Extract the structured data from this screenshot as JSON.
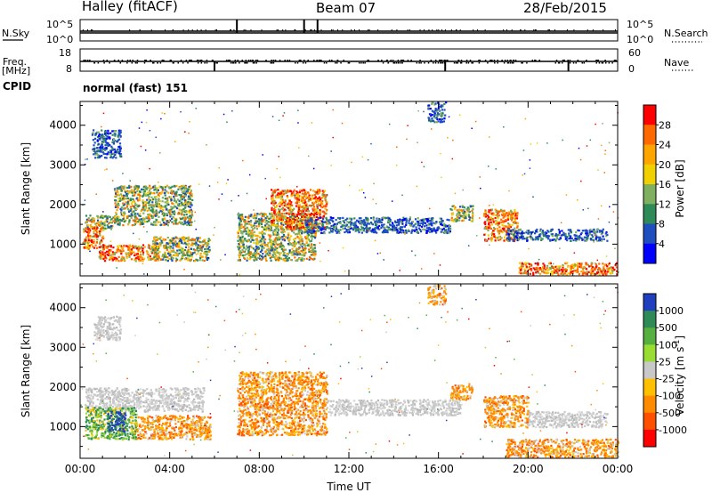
{
  "header": {
    "station": "Halley (fitACF)",
    "beam": "Beam 07",
    "date": "28/Feb/2015"
  },
  "top_panels": {
    "nsky_label": "N.Sky",
    "nsky_ticks": [
      "10^5",
      "10^0"
    ],
    "nsearch_label": "N.Search",
    "nsearch_ticks": [
      "10^5",
      "10^0"
    ],
    "freq_label": "Freq.",
    "freq_unit": "[MHz]",
    "freq_ticks": [
      "18",
      "8"
    ],
    "nave_label": "Nave",
    "nave_ticks": [
      "60",
      "0"
    ],
    "cpid_label": "CPID",
    "cpid_value": "normal (fast) 151"
  },
  "chart_data": [
    {
      "type": "heatmap",
      "ylabel": "Slant Range [km]",
      "yticks": [
        "1000",
        "2000",
        "3000",
        "4000"
      ],
      "ylim": [
        200,
        4600
      ],
      "colorbar_label": "Power [dB]",
      "colorbar_ticks": [
        "28",
        "24",
        "20",
        "16",
        "12",
        "8",
        "4"
      ],
      "colorbar_colors": [
        "#ff0000",
        "#ff6a00",
        "#ffa500",
        "#f0d000",
        "#7fb060",
        "#2e8b57",
        "#1f4fbf",
        "#0000ff"
      ],
      "echo_bands": [
        {
          "x0": 0.2,
          "x1": 1.5,
          "r0": 1400,
          "r1": 1750,
          "level": "mid"
        },
        {
          "x0": 1.5,
          "x1": 5.0,
          "r0": 1500,
          "r1": 2500,
          "level": "mid"
        },
        {
          "x0": 0.1,
          "x1": 1.0,
          "r0": 900,
          "r1": 1450,
          "level": "high"
        },
        {
          "x0": 0.8,
          "x1": 3.5,
          "r0": 600,
          "r1": 1000,
          "level": "high"
        },
        {
          "x0": 3.2,
          "x1": 5.8,
          "r0": 600,
          "r1": 1200,
          "level": "mid"
        },
        {
          "x0": 0.5,
          "x1": 1.8,
          "r0": 3200,
          "r1": 3900,
          "level": "low"
        },
        {
          "x0": 7.0,
          "x1": 10.5,
          "r0": 600,
          "r1": 1800,
          "level": "mid"
        },
        {
          "x0": 8.5,
          "x1": 11.0,
          "r0": 1400,
          "r1": 2400,
          "level": "high"
        },
        {
          "x0": 10.0,
          "x1": 16.5,
          "r0": 1300,
          "r1": 1700,
          "level": "low"
        },
        {
          "x0": 16.5,
          "x1": 17.5,
          "r0": 1600,
          "r1": 2000,
          "level": "mid"
        },
        {
          "x0": 18.0,
          "x1": 19.5,
          "r0": 1100,
          "r1": 1900,
          "level": "high"
        },
        {
          "x0": 19.0,
          "x1": 23.5,
          "r0": 1100,
          "r1": 1400,
          "level": "low"
        },
        {
          "x0": 19.5,
          "x1": 24.0,
          "r0": 250,
          "r1": 550,
          "level": "high"
        },
        {
          "x0": 15.5,
          "x1": 16.3,
          "r0": 4100,
          "r1": 4600,
          "level": "low"
        }
      ]
    },
    {
      "type": "heatmap",
      "ylabel": "Slant Range [km]",
      "yticks": [
        "1000",
        "2000",
        "3000",
        "4000"
      ],
      "ylim": [
        200,
        4600
      ],
      "xlabel": "Time UT",
      "xticks": [
        "00:00",
        "04:00",
        "08:00",
        "12:00",
        "16:00",
        "20:00",
        "00:00"
      ],
      "xlim": [
        0,
        24
      ],
      "colorbar_label": "Velocity",
      "colorbar_unit": "[m s",
      "colorbar_unit_exp": "-1",
      "colorbar_unit_close": "]",
      "colorbar_ticks": [
        "1000",
        "500",
        "100",
        "25",
        "-25",
        "-100",
        "-500",
        "-1000"
      ],
      "colorbar_colors": [
        "#1f3fbf",
        "#2e8b57",
        "#55b040",
        "#99dd33",
        "#c8c8c8",
        "#ffc000",
        "#ff8c00",
        "#ff5000",
        "#ff0000"
      ],
      "echo_bands": [
        {
          "x0": 0.2,
          "x1": 5.5,
          "r0": 1400,
          "r1": 2000,
          "level": "grey"
        },
        {
          "x0": 0.2,
          "x1": 2.5,
          "r0": 700,
          "r1": 1500,
          "level": "green"
        },
        {
          "x0": 1.2,
          "x1": 2.0,
          "r0": 900,
          "r1": 1400,
          "level": "blue"
        },
        {
          "x0": 2.5,
          "x1": 5.8,
          "r0": 700,
          "r1": 1300,
          "level": "orange"
        },
        {
          "x0": 0.6,
          "x1": 1.8,
          "r0": 3200,
          "r1": 3800,
          "level": "grey"
        },
        {
          "x0": 7.0,
          "x1": 11.0,
          "r0": 800,
          "r1": 2400,
          "level": "orange"
        },
        {
          "x0": 11.0,
          "x1": 17.0,
          "r0": 1300,
          "r1": 1700,
          "level": "grey"
        },
        {
          "x0": 16.5,
          "x1": 17.5,
          "r0": 1700,
          "r1": 2100,
          "level": "orange"
        },
        {
          "x0": 18.0,
          "x1": 20.0,
          "r0": 1000,
          "r1": 1800,
          "level": "orange"
        },
        {
          "x0": 19.0,
          "x1": 24.0,
          "r0": 250,
          "r1": 700,
          "level": "orange"
        },
        {
          "x0": 20.0,
          "x1": 23.5,
          "r0": 1000,
          "r1": 1400,
          "level": "grey"
        },
        {
          "x0": 15.5,
          "x1": 16.3,
          "r0": 4100,
          "r1": 4600,
          "level": "orange"
        }
      ]
    }
  ]
}
